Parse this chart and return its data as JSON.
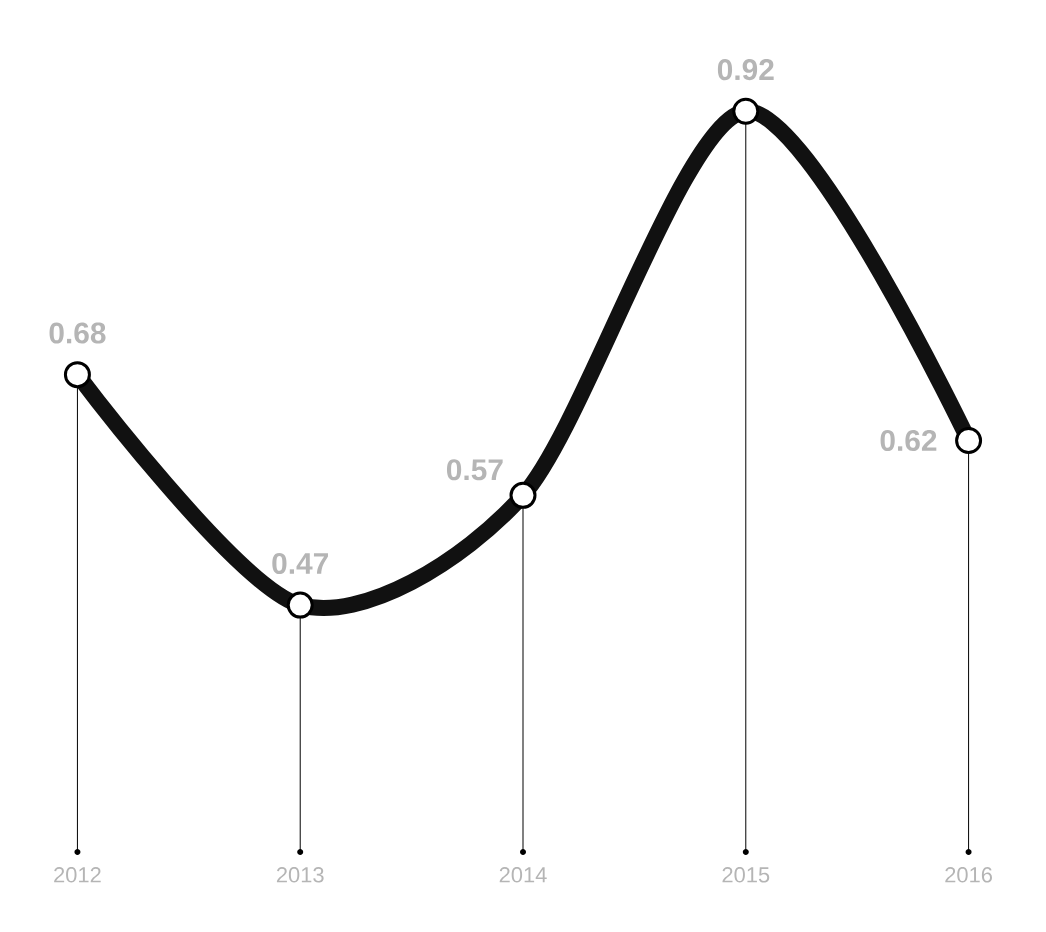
{
  "chart_data": {
    "type": "line",
    "categories": [
      "2012",
      "2013",
      "2014",
      "2015",
      "2016"
    ],
    "values": [
      0.68,
      0.47,
      0.57,
      0.92,
      0.62
    ],
    "color": "#111111",
    "marker": "circle",
    "line_style": "solid",
    "data_labels": true,
    "grid": "x"
  }
}
